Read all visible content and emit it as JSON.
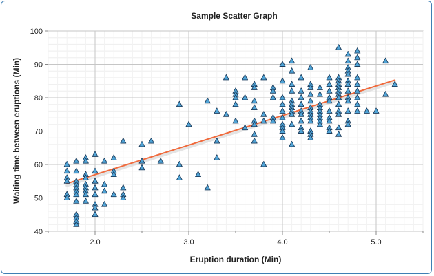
{
  "chart_data": {
    "type": "scatter",
    "title": "Sample Scatter Graph",
    "xlabel": "Eruption duration (Min)",
    "ylabel": "Waiting time between eruptions (Min)",
    "xlim": [
      1.5,
      5.5
    ],
    "ylim": [
      40,
      100
    ],
    "x_ticks": [
      2.0,
      3.0,
      4.0,
      5.0
    ],
    "x_tick_labels": [
      "2.0",
      "3.0",
      "4.0",
      "5.0"
    ],
    "y_ticks": [
      40,
      50,
      60,
      70,
      80,
      90,
      100
    ],
    "y_tick_labels": [
      "40",
      "50",
      "60",
      "70",
      "80",
      "90",
      "100"
    ],
    "grid": true,
    "marker": "triangle",
    "colors": {
      "marker_fill": "#4fa3d6",
      "marker_stroke": "#1d3d5c",
      "trend_line": "#f06a3c",
      "frame": "#3f7fb4"
    },
    "series": [
      {
        "values": [
          [
            1.7,
            60
          ],
          [
            1.7,
            58
          ],
          [
            1.7,
            56
          ],
          [
            1.7,
            55
          ],
          [
            1.7,
            51
          ],
          [
            1.7,
            50
          ],
          [
            1.8,
            61
          ],
          [
            1.8,
            58
          ],
          [
            1.8,
            55
          ],
          [
            1.8,
            54
          ],
          [
            1.8,
            53
          ],
          [
            1.8,
            52
          ],
          [
            1.8,
            51
          ],
          [
            1.8,
            49
          ],
          [
            1.8,
            45
          ],
          [
            1.8,
            44
          ],
          [
            1.8,
            43
          ],
          [
            1.8,
            42
          ],
          [
            1.9,
            62
          ],
          [
            1.9,
            61
          ],
          [
            1.9,
            57
          ],
          [
            1.9,
            56
          ],
          [
            1.9,
            54
          ],
          [
            1.9,
            53
          ],
          [
            1.9,
            52
          ],
          [
            1.9,
            51
          ],
          [
            1.9,
            49
          ],
          [
            2.0,
            63
          ],
          [
            2.0,
            58
          ],
          [
            2.0,
            55
          ],
          [
            2.0,
            53
          ],
          [
            2.0,
            51
          ],
          [
            2.0,
            48
          ],
          [
            2.0,
            47
          ],
          [
            2.0,
            45
          ],
          [
            2.1,
            61
          ],
          [
            2.1,
            54
          ],
          [
            2.1,
            52
          ],
          [
            2.1,
            48
          ],
          [
            2.2,
            62
          ],
          [
            2.2,
            58
          ],
          [
            2.2,
            57
          ],
          [
            2.2,
            51
          ],
          [
            2.3,
            67
          ],
          [
            2.3,
            53
          ],
          [
            2.3,
            51
          ],
          [
            2.3,
            50
          ],
          [
            2.5,
            66
          ],
          [
            2.5,
            61
          ],
          [
            2.5,
            59
          ],
          [
            2.6,
            67
          ],
          [
            2.7,
            61
          ],
          [
            2.9,
            78
          ],
          [
            2.9,
            60
          ],
          [
            2.9,
            56
          ],
          [
            3.0,
            72
          ],
          [
            3.1,
            57
          ],
          [
            3.2,
            79
          ],
          [
            3.2,
            53
          ],
          [
            3.3,
            76
          ],
          [
            3.3,
            67
          ],
          [
            3.3,
            62
          ],
          [
            3.4,
            86
          ],
          [
            3.4,
            75
          ],
          [
            3.5,
            82
          ],
          [
            3.5,
            81
          ],
          [
            3.5,
            80
          ],
          [
            3.5,
            78
          ],
          [
            3.5,
            73
          ],
          [
            3.6,
            86
          ],
          [
            3.6,
            80
          ],
          [
            3.6,
            71
          ],
          [
            3.7,
            84
          ],
          [
            3.7,
            83
          ],
          [
            3.7,
            79
          ],
          [
            3.7,
            77
          ],
          [
            3.7,
            73
          ],
          [
            3.7,
            72
          ],
          [
            3.7,
            69
          ],
          [
            3.7,
            67
          ],
          [
            3.8,
            86
          ],
          [
            3.8,
            75
          ],
          [
            3.8,
            73
          ],
          [
            3.8,
            60
          ],
          [
            3.9,
            83
          ],
          [
            3.9,
            82
          ],
          [
            3.9,
            80
          ],
          [
            3.9,
            74
          ],
          [
            3.9,
            73
          ],
          [
            4.0,
            90
          ],
          [
            4.0,
            85
          ],
          [
            4.0,
            80
          ],
          [
            4.0,
            78
          ],
          [
            4.0,
            76
          ],
          [
            4.0,
            74
          ],
          [
            4.0,
            72
          ],
          [
            4.0,
            71
          ],
          [
            4.0,
            70
          ],
          [
            4.0,
            68
          ],
          [
            4.1,
            91
          ],
          [
            4.1,
            88
          ],
          [
            4.1,
            84
          ],
          [
            4.1,
            82
          ],
          [
            4.1,
            79
          ],
          [
            4.1,
            78
          ],
          [
            4.1,
            77
          ],
          [
            4.1,
            76
          ],
          [
            4.1,
            75
          ],
          [
            4.1,
            72
          ],
          [
            4.1,
            66
          ],
          [
            4.2,
            86
          ],
          [
            4.2,
            82
          ],
          [
            4.2,
            80
          ],
          [
            4.2,
            78
          ],
          [
            4.2,
            76
          ],
          [
            4.2,
            75
          ],
          [
            4.2,
            73
          ],
          [
            4.2,
            71
          ],
          [
            4.2,
            70
          ],
          [
            4.3,
            89
          ],
          [
            4.3,
            84
          ],
          [
            4.3,
            83
          ],
          [
            4.3,
            81
          ],
          [
            4.3,
            79
          ],
          [
            4.3,
            77
          ],
          [
            4.3,
            76
          ],
          [
            4.3,
            75
          ],
          [
            4.3,
            74
          ],
          [
            4.3,
            73
          ],
          [
            4.3,
            70
          ],
          [
            4.3,
            69
          ],
          [
            4.3,
            68
          ],
          [
            4.4,
            83
          ],
          [
            4.4,
            81
          ],
          [
            4.4,
            78
          ],
          [
            4.4,
            77
          ],
          [
            4.4,
            76
          ],
          [
            4.4,
            75
          ],
          [
            4.4,
            74
          ],
          [
            4.4,
            73
          ],
          [
            4.4,
            72
          ],
          [
            4.5,
            86
          ],
          [
            4.5,
            84
          ],
          [
            4.5,
            82
          ],
          [
            4.5,
            80
          ],
          [
            4.5,
            79
          ],
          [
            4.5,
            76
          ],
          [
            4.5,
            74
          ],
          [
            4.5,
            73
          ],
          [
            4.5,
            71
          ],
          [
            4.5,
            70
          ],
          [
            4.6,
            95
          ],
          [
            4.6,
            86
          ],
          [
            4.6,
            85
          ],
          [
            4.6,
            84
          ],
          [
            4.6,
            83
          ],
          [
            4.6,
            82
          ],
          [
            4.6,
            81
          ],
          [
            4.6,
            80
          ],
          [
            4.6,
            78
          ],
          [
            4.6,
            76
          ],
          [
            4.6,
            75
          ],
          [
            4.6,
            71
          ],
          [
            4.6,
            69
          ],
          [
            4.7,
            93
          ],
          [
            4.7,
            91
          ],
          [
            4.7,
            89
          ],
          [
            4.7,
            88
          ],
          [
            4.7,
            87
          ],
          [
            4.7,
            85
          ],
          [
            4.7,
            84
          ],
          [
            4.7,
            82
          ],
          [
            4.7,
            80
          ],
          [
            4.7,
            79
          ],
          [
            4.7,
            76
          ],
          [
            4.7,
            73
          ],
          [
            4.7,
            72
          ],
          [
            4.8,
            94
          ],
          [
            4.8,
            92
          ],
          [
            4.8,
            90
          ],
          [
            4.8,
            86
          ],
          [
            4.8,
            84
          ],
          [
            4.8,
            82
          ],
          [
            4.8,
            80
          ],
          [
            4.8,
            78
          ],
          [
            4.8,
            76
          ],
          [
            4.9,
            76
          ],
          [
            5.0,
            76
          ],
          [
            5.1,
            91
          ],
          [
            5.1,
            81
          ],
          [
            5.2,
            84
          ]
        ]
      }
    ],
    "trendline": {
      "x": [
        1.7,
        5.2
      ],
      "y": [
        54.3,
        85.3
      ]
    }
  }
}
